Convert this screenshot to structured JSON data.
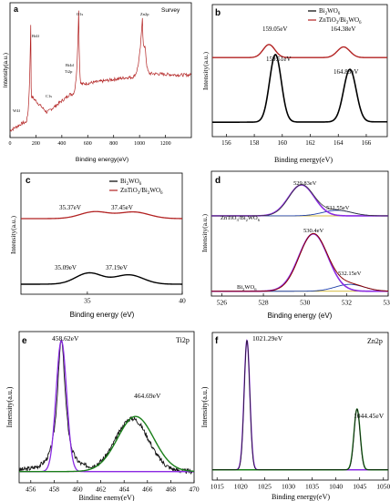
{
  "figure": {
    "panels": [
      {
        "id": "a",
        "letter": "a",
        "tag": "Survey",
        "xlabel": "Binding energy(eV)",
        "ylabel": "Intensity(a.u.)",
        "x_ticks": [
          0,
          200,
          400,
          600,
          800,
          1000,
          1200
        ],
        "xlim": [
          0,
          1400
        ],
        "annotations": [
          {
            "text": "Bi4f",
            "x": 160,
            "y": 0.86
          },
          {
            "text": "Bi4d",
            "x": 440,
            "y": 0.42
          },
          {
            "text": "O1s",
            "x": 530,
            "y": 0.97
          },
          {
            "text": "Zn2p",
            "x": 1022,
            "y": 0.92
          },
          {
            "text": "Ti2p",
            "x": 459,
            "y": 0.32
          },
          {
            "text": "C1s",
            "x": 285,
            "y": 0.2
          },
          {
            "text": "W4f",
            "x": 35,
            "y": 0.06
          }
        ]
      },
      {
        "id": "b",
        "letter": "b",
        "xlabel": "Binding energy(eV)",
        "ylabel": "Intensity(a.u.)",
        "x_ticks": [
          156,
          158,
          160,
          162,
          164,
          166
        ],
        "xlim": [
          155,
          167.5
        ],
        "legend": [
          {
            "label": "Bi",
            "sub1": "2",
            "mid": "WO",
            "sub2": "6",
            "color": "#000000"
          },
          {
            "label": "ZnTiO",
            "sub1": "3",
            "mid": "/Bi",
            "sub2": "2",
            "tail": "WO",
            "sub3": "6",
            "color": "#b22222"
          }
        ],
        "annotations": [
          "159.05eV",
          "164.38eV",
          "159.51eV",
          "164.83eV"
        ]
      },
      {
        "id": "c",
        "letter": "c",
        "xlabel": "Binding energy (eV)",
        "ylabel": "Intensity(a.u.)",
        "x_ticks": [
          35,
          40
        ],
        "xlim": [
          31.5,
          40
        ],
        "annotations": [
          "35.37eV",
          "37.45eV",
          "35.09eV",
          "37.19eV"
        ]
      },
      {
        "id": "d",
        "letter": "d",
        "xlabel": "Binding energy (eV)",
        "ylabel": "Intensity(a.u.)",
        "x_ticks": [
          526,
          528,
          530,
          532,
          534
        ],
        "xlim": [
          525.5,
          534
        ],
        "annotations": [
          "529.83eV",
          "531.55eV",
          "530.4eV",
          "532.15eV"
        ],
        "series_labels": [
          "ZnTiO3/Bi2WO6",
          "Bi2WO6"
        ]
      },
      {
        "id": "e",
        "letter": "e",
        "tag": "Ti2p",
        "xlabel": "Bindine eneny(eV)",
        "ylabel": "Intensity(a.u.)",
        "x_ticks": [
          456,
          458,
          460,
          462,
          464,
          466,
          468,
          470
        ],
        "xlim": [
          455,
          470
        ],
        "annotations": [
          "458.62eV",
          "464.69eV"
        ]
      },
      {
        "id": "f",
        "letter": "f",
        "tag": "Zn2p",
        "xlabel": "Binding energy(eV)",
        "ylabel": "Intensity(a.u.)",
        "x_ticks": [
          1015,
          1020,
          1025,
          1030,
          1035,
          1040,
          1045,
          1050
        ],
        "xlim": [
          1014,
          1051
        ],
        "annotations": [
          "1021.29eV",
          "1044.45eV"
        ]
      }
    ]
  },
  "chart_data": [
    {
      "type": "line",
      "panel": "a",
      "title": "Survey",
      "xlabel": "Binding energy(eV)",
      "ylabel": "Intensity(a.u.)",
      "xlim": [
        0,
        1400
      ],
      "series": [
        {
          "values": [
            [
              0,
              0.04
            ],
            [
              35,
              0.06
            ],
            [
              100,
              0.1
            ],
            [
              160,
              0.86
            ],
            [
              170,
              0.3
            ],
            [
              285,
              0.18
            ],
            [
              440,
              0.3
            ],
            [
              459,
              0.32
            ],
            [
              530,
              0.97
            ],
            [
              560,
              0.4
            ],
            [
              700,
              0.42
            ],
            [
              900,
              0.45
            ],
            [
              1022,
              0.92
            ],
            [
              1045,
              0.68
            ],
            [
              1100,
              0.48
            ],
            [
              1300,
              0.47
            ],
            [
              1400,
              0.47
            ]
          ]
        }
      ]
    },
    {
      "type": "line",
      "panel": "b",
      "xlabel": "Binding energy(eV)",
      "ylabel": "Intensity(a.u.)",
      "xlim": [
        155,
        167.5
      ],
      "series": [
        {
          "name": "Bi2WO6",
          "peaks": [
            159.51,
            164.83
          ]
        },
        {
          "name": "ZnTiO3/Bi2WO6",
          "peaks": [
            159.05,
            164.38
          ]
        }
      ]
    },
    {
      "type": "line",
      "panel": "c",
      "xlabel": "Binding energy (eV)",
      "ylabel": "Intensity(a.u.)",
      "xlim": [
        31.5,
        40
      ],
      "series": [
        {
          "name": "Bi2WO6",
          "peaks": [
            35.09,
            37.19
          ]
        },
        {
          "name": "ZnTiO3/Bi2WO6",
          "peaks": [
            35.37,
            37.45
          ]
        }
      ]
    },
    {
      "type": "line",
      "panel": "d",
      "xlabel": "Binding energy (eV)",
      "ylabel": "Intensity(a.u.)",
      "xlim": [
        525.5,
        534
      ],
      "series": [
        {
          "name": "ZnTiO3/Bi2WO6",
          "peaks": [
            529.83,
            531.55
          ]
        },
        {
          "name": "Bi2WO6",
          "peaks": [
            530.4,
            532.15
          ]
        }
      ]
    },
    {
      "type": "line",
      "panel": "e",
      "title": "Ti2p",
      "xlabel": "Bindine eneny(eV)",
      "ylabel": "Intensity(a.u.)",
      "xlim": [
        455,
        470
      ],
      "series": [
        {
          "peaks": [
            458.62,
            464.69
          ]
        }
      ]
    },
    {
      "type": "line",
      "panel": "f",
      "title": "Zn2p",
      "xlabel": "Binding energy(eV)",
      "ylabel": "Intensity(a.u.)",
      "xlim": [
        1014,
        1051
      ],
      "series": [
        {
          "peaks": [
            1021.29,
            1044.45
          ]
        }
      ]
    }
  ]
}
